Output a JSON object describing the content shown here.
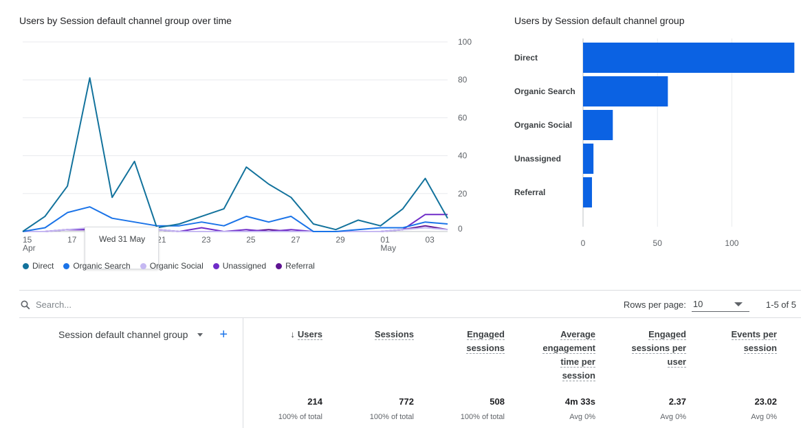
{
  "line_chart": {
    "title": "Users by Session default channel group over time",
    "y_ticks": [
      "100",
      "80",
      "60",
      "40",
      "20",
      "0"
    ],
    "x_ticks": [
      {
        "label": "15",
        "sub": "Apr"
      },
      {
        "label": "17",
        "sub": ""
      },
      {
        "label": "19",
        "sub": ""
      },
      {
        "label": "21",
        "sub": ""
      },
      {
        "label": "23",
        "sub": ""
      },
      {
        "label": "25",
        "sub": ""
      },
      {
        "label": "27",
        "sub": ""
      },
      {
        "label": "29",
        "sub": ""
      },
      {
        "label": "01",
        "sub": "May"
      },
      {
        "label": "03",
        "sub": ""
      }
    ],
    "tooltip": "Wed 31 May",
    "legend": [
      {
        "name": "Direct",
        "color": "#12729c"
      },
      {
        "name": "Organic Search",
        "color": "#1a73e8"
      },
      {
        "name": "Organic Social",
        "color": "#c5b8f2"
      },
      {
        "name": "Unassigned",
        "color": "#6f2cc8"
      },
      {
        "name": "Referral",
        "color": "#5e1391"
      }
    ]
  },
  "chart_data": [
    {
      "type": "line",
      "title": "Users by Session default channel group over time",
      "x": [
        "15 Apr",
        "16 Apr",
        "17 Apr",
        "18 Apr",
        "19 Apr",
        "20 Apr",
        "21 Apr",
        "22 Apr",
        "23 Apr",
        "24 Apr",
        "25 Apr",
        "26 Apr",
        "27 Apr",
        "28 Apr",
        "29 Apr",
        "30 Apr",
        "01 May",
        "02 May",
        "03 May",
        "04 May"
      ],
      "ylim": [
        0,
        100
      ],
      "series": [
        {
          "name": "Direct",
          "color": "#12729c",
          "values": [
            0,
            8,
            24,
            81,
            18,
            37,
            2,
            4,
            8,
            12,
            34,
            25,
            18,
            4,
            1,
            6,
            3,
            12,
            28,
            7
          ]
        },
        {
          "name": "Organic Search",
          "color": "#1a73e8",
          "values": [
            0,
            2,
            10,
            13,
            7,
            5,
            3,
            3,
            5,
            3,
            8,
            5,
            8,
            0,
            0,
            1,
            2,
            2,
            5,
            4
          ]
        },
        {
          "name": "Organic Social",
          "color": "#c5b8f2",
          "values": [
            0,
            0,
            1,
            2,
            1,
            0,
            1,
            0,
            0,
            0,
            0,
            0,
            0,
            0,
            0,
            0,
            0,
            1,
            2,
            1
          ]
        },
        {
          "name": "Unassigned",
          "color": "#6f2cc8",
          "values": [
            0,
            0,
            1,
            1,
            1,
            1,
            1,
            0,
            2,
            0,
            1,
            0,
            1,
            0,
            0,
            0,
            0,
            1,
            9,
            9
          ]
        },
        {
          "name": "Referral",
          "color": "#5e1391",
          "values": [
            0,
            0,
            1,
            1,
            0,
            0,
            1,
            0,
            0,
            0,
            0,
            1,
            0,
            0,
            0,
            0,
            0,
            1,
            3,
            1
          ]
        }
      ]
    },
    {
      "type": "bar",
      "title": "Users by Session default channel group",
      "categories": [
        "Direct",
        "Organic Search",
        "Organic Social",
        "Unassigned",
        "Referral"
      ],
      "values": [
        142,
        57,
        20,
        7,
        6
      ],
      "xlim": [
        0,
        140
      ],
      "x_ticks": [
        "0",
        "50",
        "100"
      ],
      "color": "#0b62e3"
    }
  ],
  "table": {
    "search_placeholder": "Search...",
    "rows_per_page_label": "Rows per page:",
    "rows_per_page_value": "10",
    "pagination": "1-5 of 5",
    "dimension_header": "Session default channel group",
    "add_icon": "+",
    "columns": [
      {
        "label_lines": [
          "Users"
        ],
        "sorted": true,
        "total": "214",
        "sub": "100% of total"
      },
      {
        "label_lines": [
          "Sessions"
        ],
        "sorted": false,
        "total": "772",
        "sub": "100% of total"
      },
      {
        "label_lines": [
          "Engaged",
          "sessions"
        ],
        "sorted": false,
        "total": "508",
        "sub": "100% of total"
      },
      {
        "label_lines": [
          "Average",
          "engagement",
          "time per",
          "session"
        ],
        "sorted": false,
        "total": "4m 33s",
        "sub": "Avg 0%"
      },
      {
        "label_lines": [
          "Engaged",
          "sessions per",
          "user"
        ],
        "sorted": false,
        "total": "2.37",
        "sub": "Avg 0%"
      },
      {
        "label_lines": [
          "Events per",
          "session"
        ],
        "sorted": false,
        "total": "23.02",
        "sub": "Avg 0%"
      }
    ]
  }
}
